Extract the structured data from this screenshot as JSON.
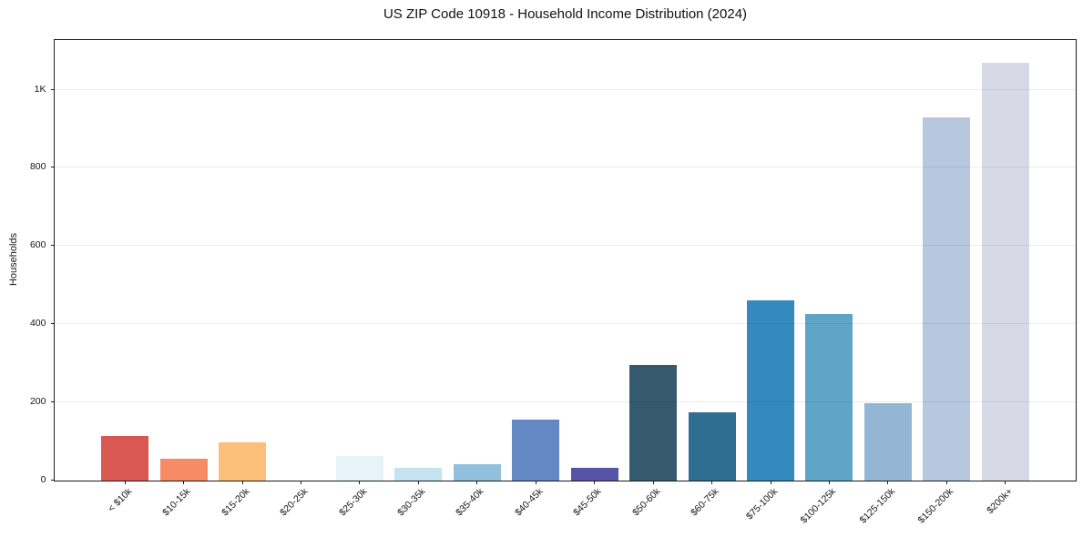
{
  "chart_data": {
    "type": "bar",
    "title": "US ZIP Code 10918 - Household Income Distribution (2024)",
    "xlabel": "",
    "ylabel": "Households",
    "categories": [
      "< $10k",
      "$10-15k",
      "$15-20k",
      "$20-25k",
      "$25-30k",
      "$30-35k",
      "$35-40k",
      "$40-45k",
      "$45-50k",
      "$50-60k",
      "$60-75k",
      "$75-100k",
      "$100-125k",
      "$125-150k",
      "$150-200k",
      "$200k+"
    ],
    "values": [
      114,
      55,
      98,
      0,
      63,
      32,
      43,
      155,
      33,
      295,
      175,
      460,
      425,
      197,
      930,
      1068
    ],
    "bar_colors": [
      "#d95852",
      "#f68b66",
      "#fabf79",
      "#fdda9f",
      "#e7f3f8",
      "#c3e3ee",
      "#92c0dc",
      "#6488c4",
      "#5754a8",
      "#355a70",
      "#306e91",
      "#348abd",
      "#60a4c8",
      "#93b6d5",
      "#b7c7de",
      "#d7d9e6"
    ],
    "ytick_values": [
      0,
      200,
      400,
      600,
      800,
      1000
    ],
    "ytick_labels": [
      "0",
      "200",
      "400",
      "600",
      "800",
      "1K"
    ],
    "ylim": [
      0,
      1127
    ],
    "grid": "horizontal-light-above-bars",
    "legend_position": "none",
    "background_color": "#ffffff",
    "axes_edge_color": "#1a1a1a",
    "gridline_color": "#ebebeb"
  }
}
